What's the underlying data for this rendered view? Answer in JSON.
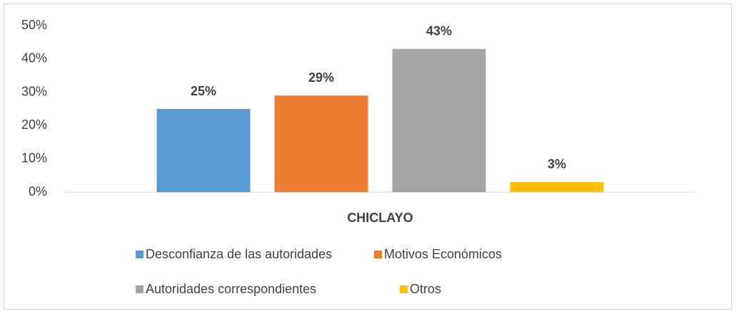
{
  "chart_data": {
    "type": "bar",
    "categories": [
      "CHICLAYO"
    ],
    "series": [
      {
        "name": "Desconfianza de las autoridades",
        "color": "#5b9bd5",
        "values": [
          25
        ],
        "value_labels": [
          "25%"
        ]
      },
      {
        "name": "Motivos Económicos",
        "color": "#ed7d31",
        "values": [
          29
        ],
        "value_labels": [
          "29%"
        ]
      },
      {
        "name": "Autoridades correspondientes",
        "color": "#a5a5a5",
        "values": [
          43
        ],
        "value_labels": [
          "43%"
        ]
      },
      {
        "name": "Otros",
        "color": "#ffc000",
        "values": [
          3
        ],
        "value_labels": [
          "3%"
        ]
      }
    ],
    "ylim": [
      0,
      50
    ],
    "yticks": [
      {
        "value": 0,
        "label": "0%"
      },
      {
        "value": 10,
        "label": "10%"
      },
      {
        "value": 20,
        "label": "20%"
      },
      {
        "value": 30,
        "label": "30%"
      },
      {
        "value": 40,
        "label": "40%"
      },
      {
        "value": 50,
        "label": "50%"
      }
    ],
    "grid": false,
    "legend": "bottom"
  }
}
